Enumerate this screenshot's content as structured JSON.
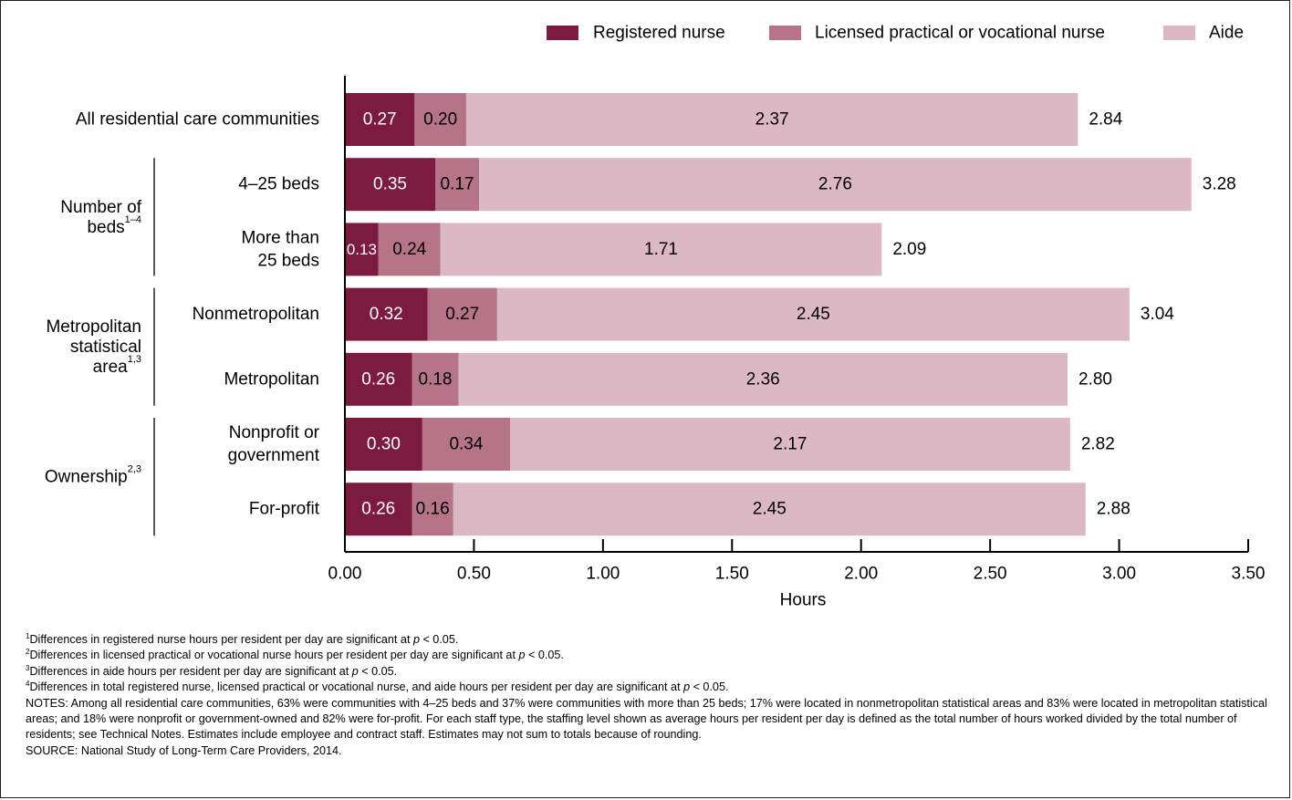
{
  "chart_data": {
    "type": "bar",
    "stacked": true,
    "orientation": "horizontal",
    "xlabel": "Hours",
    "xlim": [
      0,
      3.5
    ],
    "xticks": [
      "0.00",
      "0.50",
      "1.00",
      "1.50",
      "2.00",
      "2.50",
      "3.00",
      "3.50"
    ],
    "grid": false,
    "legend_position": "top-right",
    "categories": [
      "All residential care communities",
      "4–25 beds",
      "More than 25 beds",
      "Nonmetropolitan",
      "Metropolitan",
      "Nonprofit or government",
      "For-profit"
    ],
    "category_lines": [
      [
        "All residential care communities"
      ],
      [
        "4–25 beds"
      ],
      [
        "More than",
        "25 beds"
      ],
      [
        "Nonmetropolitan"
      ],
      [
        "Metropolitan"
      ],
      [
        "Nonprofit or",
        "government"
      ],
      [
        "For-profit"
      ]
    ],
    "groups": [
      {
        "lines": [
          "Number of",
          "beds"
        ],
        "sup": "1–4",
        "rows": [
          1,
          2
        ]
      },
      {
        "lines": [
          "Metropolitan",
          "statistical",
          "area"
        ],
        "sup": "1,3",
        "rows": [
          3,
          4
        ]
      },
      {
        "lines": [
          "Ownership"
        ],
        "sup": "2,3",
        "rows": [
          5,
          6
        ]
      }
    ],
    "series": [
      {
        "name": "Registered nurse",
        "color": "#7d1a3f",
        "values": [
          0.27,
          0.35,
          0.13,
          0.32,
          0.26,
          0.3,
          0.26
        ],
        "labels": [
          "0.27",
          "0.35",
          "0.13",
          "0.32",
          "0.26",
          "0.30",
          "0.26"
        ]
      },
      {
        "name": "Licensed practical or vocational nurse",
        "color": "#b67489",
        "values": [
          0.2,
          0.17,
          0.24,
          0.27,
          0.18,
          0.34,
          0.16
        ],
        "labels": [
          "0.20",
          "0.17",
          "0.24",
          "0.27",
          "0.18",
          "0.34",
          "0.16"
        ]
      },
      {
        "name": "Aide",
        "color": "#dbb8c4",
        "values": [
          2.37,
          2.76,
          1.71,
          2.45,
          2.36,
          2.17,
          2.45
        ],
        "labels": [
          "2.37",
          "2.76",
          "1.71",
          "2.45",
          "2.36",
          "2.17",
          "2.45"
        ]
      }
    ],
    "totals": [
      2.84,
      3.28,
      2.09,
      3.04,
      2.8,
      2.82,
      2.88
    ],
    "total_labels": [
      "2.84",
      "3.28",
      "2.09",
      "3.04",
      "2.80",
      "2.82",
      "2.88"
    ]
  },
  "footnotes": [
    {
      "num": "1",
      "text": "Differences in registered nurse hours per resident per day are significant at ",
      "p": "p",
      "tail": " < 0.05."
    },
    {
      "num": "2",
      "text": "Differences in licensed practical or vocational nurse hours per resident per day are significant at ",
      "p": "p",
      "tail": " < 0.05."
    },
    {
      "num": "3",
      "text": "Differences in aide hours per resident per day are significant at ",
      "p": "p",
      "tail": " < 0.05."
    },
    {
      "num": "4",
      "text": "Differences in total registered nurse, licensed practical or vocational nurse, and aide hours per resident per day are significant at ",
      "p": "p",
      "tail": " < 0.05."
    }
  ],
  "notes": "NOTES: Among all residential care communities, 63% were communities with 4–25 beds and 37% were communities with more than 25 beds; 17% were located in nonmetropolitan statistical areas and 83% were located in metropolitan statistical areas; and 18% were nonprofit or government-owned and 82% were for-profit. For each staff type, the staffing level shown as average hours per resident per day is defined as the total number of hours worked divided by the total number of residents; see Technical Notes. Estimates include employee and contract staff. Estimates may not sum to totals because of rounding.",
  "source": "SOURCE: National Study of Long-Term Care Providers, 2014."
}
